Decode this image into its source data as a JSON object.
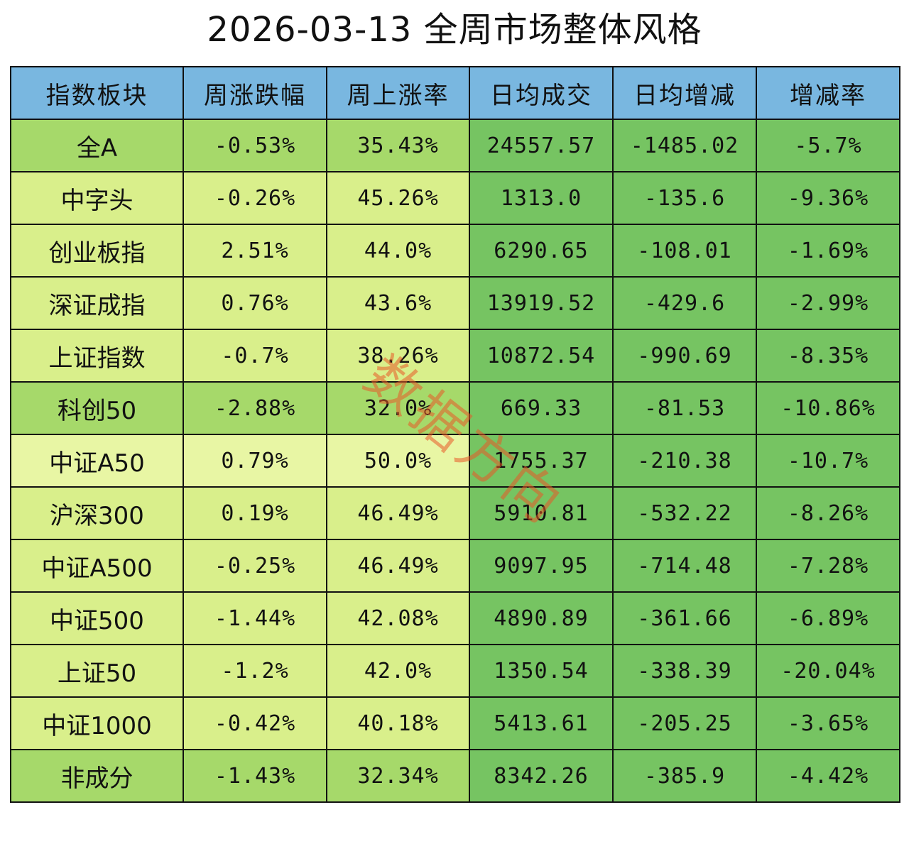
{
  "title": "2026-03-13 全周市场整体风格",
  "watermark": "数据方向",
  "colors": {
    "header_bg": "#79b7e0",
    "dark_green": "#76c462",
    "mid_green": "#a6d96a",
    "light_green": "#d9ef8b",
    "pale_green": "#e8f6a4",
    "watermark": "#e85a28"
  },
  "table": {
    "headers": [
      "指数板块",
      "周涨跌幅",
      "周上涨率",
      "日均成交",
      "日均增减",
      "增减率"
    ],
    "rows": [
      {
        "name": "全A",
        "weekly_change": "-0.53%",
        "weekly_up_rate": "35.43%",
        "avg_volume": "24557.57",
        "avg_change": "-1485.02",
        "change_rate": "-5.7%",
        "shade": "mid"
      },
      {
        "name": "中字头",
        "weekly_change": "-0.26%",
        "weekly_up_rate": "45.26%",
        "avg_volume": "1313.0",
        "avg_change": "-135.6",
        "change_rate": "-9.36%",
        "shade": "light"
      },
      {
        "name": "创业板指",
        "weekly_change": "2.51%",
        "weekly_up_rate": "44.0%",
        "avg_volume": "6290.65",
        "avg_change": "-108.01",
        "change_rate": "-1.69%",
        "shade": "light"
      },
      {
        "name": "深证成指",
        "weekly_change": "0.76%",
        "weekly_up_rate": "43.6%",
        "avg_volume": "13919.52",
        "avg_change": "-429.6",
        "change_rate": "-2.99%",
        "shade": "light"
      },
      {
        "name": "上证指数",
        "weekly_change": "-0.7%",
        "weekly_up_rate": "38.26%",
        "avg_volume": "10872.54",
        "avg_change": "-990.69",
        "change_rate": "-8.35%",
        "shade": "light"
      },
      {
        "name": "科创50",
        "weekly_change": "-2.88%",
        "weekly_up_rate": "32.0%",
        "avg_volume": "669.33",
        "avg_change": "-81.53",
        "change_rate": "-10.86%",
        "shade": "mid"
      },
      {
        "name": "中证A50",
        "weekly_change": "0.79%",
        "weekly_up_rate": "50.0%",
        "avg_volume": "1755.37",
        "avg_change": "-210.38",
        "change_rate": "-10.7%",
        "shade": "pale"
      },
      {
        "name": "沪深300",
        "weekly_change": "0.19%",
        "weekly_up_rate": "46.49%",
        "avg_volume": "5910.81",
        "avg_change": "-532.22",
        "change_rate": "-8.26%",
        "shade": "light"
      },
      {
        "name": "中证A500",
        "weekly_change": "-0.25%",
        "weekly_up_rate": "46.49%",
        "avg_volume": "9097.95",
        "avg_change": "-714.48",
        "change_rate": "-7.28%",
        "shade": "light"
      },
      {
        "name": "中证500",
        "weekly_change": "-1.44%",
        "weekly_up_rate": "42.08%",
        "avg_volume": "4890.89",
        "avg_change": "-361.66",
        "change_rate": "-6.89%",
        "shade": "light"
      },
      {
        "name": "上证50",
        "weekly_change": "-1.2%",
        "weekly_up_rate": "42.0%",
        "avg_volume": "1350.54",
        "avg_change": "-338.39",
        "change_rate": "-20.04%",
        "shade": "light"
      },
      {
        "name": "中证1000",
        "weekly_change": "-0.42%",
        "weekly_up_rate": "40.18%",
        "avg_volume": "5413.61",
        "avg_change": "-205.25",
        "change_rate": "-3.65%",
        "shade": "light"
      },
      {
        "name": "非成分",
        "weekly_change": "-1.43%",
        "weekly_up_rate": "32.34%",
        "avg_volume": "8342.26",
        "avg_change": "-385.9",
        "change_rate": "-4.42%",
        "shade": "mid"
      }
    ]
  }
}
